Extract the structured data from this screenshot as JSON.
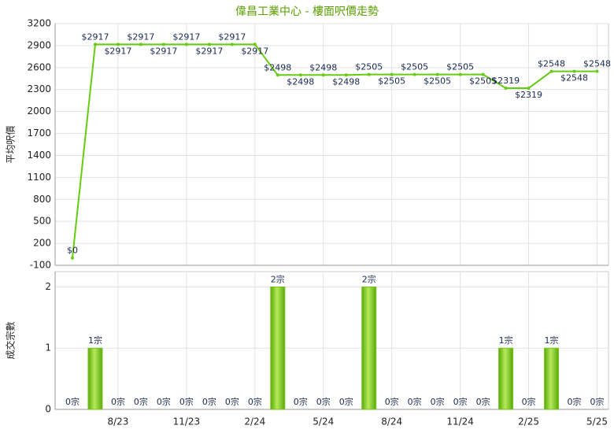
{
  "chart_data": [
    {
      "type": "line",
      "title": "偉昌工業中心 - 樓面呎價走勢",
      "ylabel": "平均呎價",
      "categories": [
        null,
        null,
        "8/23",
        null,
        null,
        "11/23",
        null,
        null,
        "2/24",
        null,
        null,
        "5/24",
        null,
        null,
        "8/24",
        null,
        null,
        "11/24",
        null,
        null,
        "2/25",
        null,
        null,
        "5/25"
      ],
      "values": [
        0,
        2917,
        2917,
        2917,
        2917,
        2917,
        2917,
        2917,
        2917,
        2498,
        2498,
        2498,
        2498,
        2505,
        2505,
        2505,
        2505,
        2505,
        2505,
        2319,
        2319,
        2548,
        2548,
        2548
      ],
      "value_labels": [
        "$0",
        "$2917",
        "$2917",
        "$2917",
        "$2917",
        "$2917",
        "$2917",
        "$2917",
        "$2917",
        "$2498",
        "$2498",
        "$2498",
        "$2498",
        "$2505",
        "$2505",
        "$2505",
        "$2505",
        "$2505",
        "$2505",
        "$2319",
        "$2319",
        "$2548",
        "$2548",
        "$2548"
      ],
      "color": "#66cc11",
      "ylim": [
        -100,
        3200
      ],
      "yticks": [
        -100,
        200,
        500,
        800,
        1100,
        1400,
        1700,
        2000,
        2300,
        2600,
        2900,
        3200
      ],
      "grid": true
    },
    {
      "type": "bar",
      "ylabel": "成交宗數",
      "categories": [
        null,
        null,
        "8/23",
        null,
        null,
        "11/23",
        null,
        null,
        "2/24",
        null,
        null,
        "5/24",
        null,
        null,
        "8/24",
        null,
        null,
        "11/24",
        null,
        null,
        "2/25",
        null,
        null,
        "5/25"
      ],
      "values": [
        0,
        1,
        0,
        0,
        0,
        0,
        0,
        0,
        0,
        2,
        0,
        0,
        0,
        2,
        0,
        0,
        0,
        0,
        0,
        1,
        0,
        1,
        0,
        0
      ],
      "value_labels": [
        "0宗",
        "1宗",
        "0宗",
        "0宗",
        "0宗",
        "0宗",
        "0宗",
        "0宗",
        "0宗",
        "2宗",
        "0宗",
        "0宗",
        "0宗",
        "2宗",
        "0宗",
        "0宗",
        "0宗",
        "0宗",
        "0宗",
        "1宗",
        "0宗",
        "1宗",
        "0宗",
        "0宗"
      ],
      "color": "#77c41a",
      "ylim": [
        0,
        2.25
      ],
      "yticks": [
        0,
        1,
        2
      ],
      "grid": true
    }
  ]
}
